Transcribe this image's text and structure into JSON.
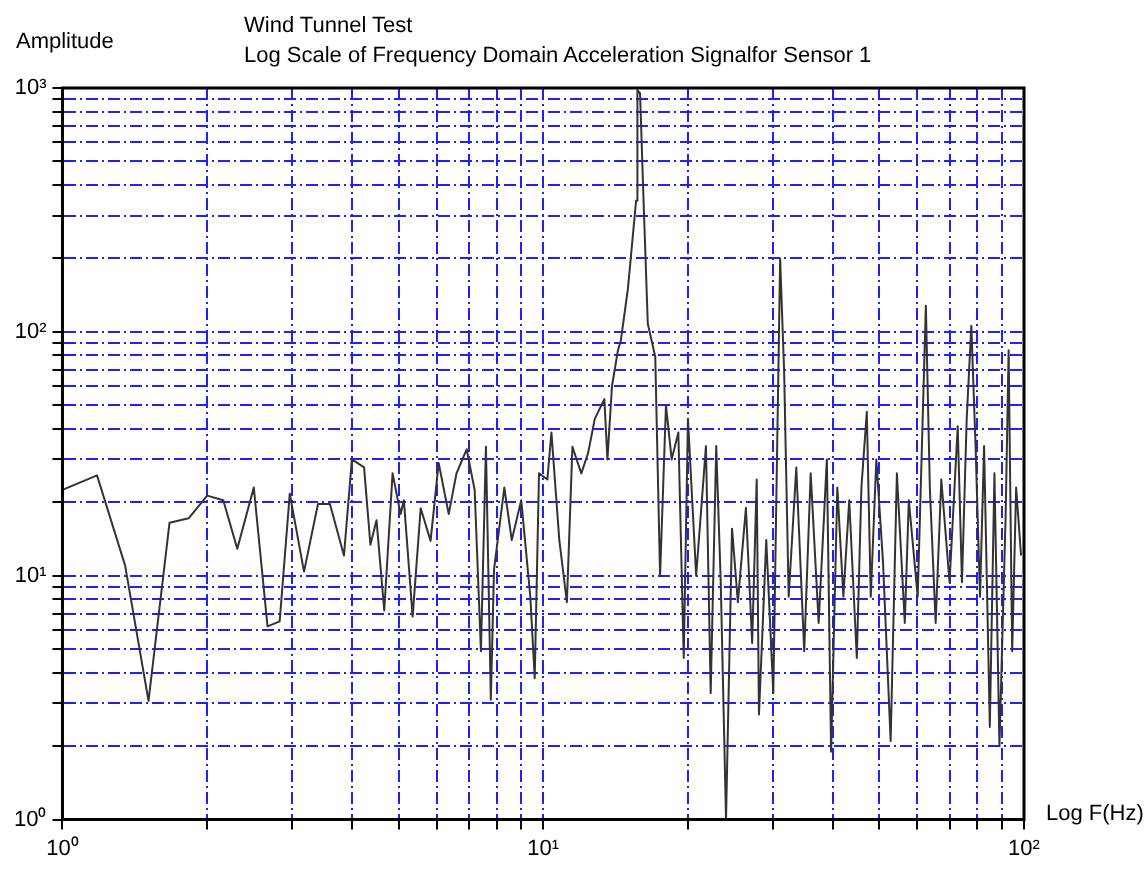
{
  "chart_data": {
    "type": "line",
    "title": "Wind Tunnel Test",
    "subtitle": "Log Scale of Frequency Domain Acceleration Signalfor Sensor 1",
    "xlabel": "Log F(Hz)",
    "ylabel": "Amplitude",
    "log": "xy",
    "grid": true,
    "legend": false,
    "marker": "none",
    "line_style": "solid",
    "xlim": [
      1,
      100
    ],
    "ylim": [
      1,
      1000
    ],
    "xticks": [
      {
        "value": 1,
        "label": "10⁰"
      },
      {
        "value": 2,
        "label": null
      },
      {
        "value": 3,
        "label": null
      },
      {
        "value": 4,
        "label": null
      },
      {
        "value": 5,
        "label": null
      },
      {
        "value": 6,
        "label": null
      },
      {
        "value": 7,
        "label": null
      },
      {
        "value": 8,
        "label": null
      },
      {
        "value": 9,
        "label": null
      },
      {
        "value": 10,
        "label": "10¹"
      },
      {
        "value": 20,
        "label": null
      },
      {
        "value": 30,
        "label": null
      },
      {
        "value": 40,
        "label": null
      },
      {
        "value": 50,
        "label": null
      },
      {
        "value": 60,
        "label": null
      },
      {
        "value": 70,
        "label": null
      },
      {
        "value": 80,
        "label": null
      },
      {
        "value": 90,
        "label": null
      },
      {
        "value": 100,
        "label": "10²"
      }
    ],
    "yticks": [
      {
        "value": 1,
        "label": "10⁰"
      },
      {
        "value": 2,
        "label": null
      },
      {
        "value": 3,
        "label": null
      },
      {
        "value": 4,
        "label": null
      },
      {
        "value": 5,
        "label": null
      },
      {
        "value": 6,
        "label": null
      },
      {
        "value": 7,
        "label": null
      },
      {
        "value": 8,
        "label": null
      },
      {
        "value": 9,
        "label": null
      },
      {
        "value": 10,
        "label": "10¹"
      },
      {
        "value": 20,
        "label": null
      },
      {
        "value": 30,
        "label": null
      },
      {
        "value": 40,
        "label": null
      },
      {
        "value": 50,
        "label": null
      },
      {
        "value": 60,
        "label": null
      },
      {
        "value": 70,
        "label": null
      },
      {
        "value": 80,
        "label": null
      },
      {
        "value": 90,
        "label": null
      },
      {
        "value": 100,
        "label": "10²"
      },
      {
        "value": 200,
        "label": null
      },
      {
        "value": 300,
        "label": null
      },
      {
        "value": 400,
        "label": null
      },
      {
        "value": 500,
        "label": null
      },
      {
        "value": 600,
        "label": null
      },
      {
        "value": 700,
        "label": null
      },
      {
        "value": 800,
        "label": null
      },
      {
        "value": 900,
        "label": null
      },
      {
        "value": 1000,
        "label": "10³"
      }
    ],
    "series": [
      {
        "color": "#333333",
        "x": [
          1.0,
          1.18,
          1.35,
          1.51,
          1.67,
          1.83,
          2.0,
          2.16,
          2.31,
          2.5,
          2.67,
          2.83,
          2.97,
          3.18,
          3.4,
          3.6,
          3.85,
          4.0,
          4.24,
          4.37,
          4.5,
          4.67,
          4.86,
          5.05,
          5.13,
          5.35,
          5.56,
          5.83,
          6.06,
          6.36,
          6.6,
          6.93,
          7.2,
          7.42,
          7.6,
          7.78,
          7.9,
          8.3,
          8.6,
          9.0,
          9.4,
          9.6,
          9.8,
          10.2,
          10.4,
          10.8,
          11.2,
          11.5,
          12.0,
          12.4,
          12.8,
          13.4,
          13.6,
          13.9,
          14.3,
          14.5,
          15.0,
          15.6,
          15.7,
          15.9,
          16.2,
          16.5,
          17.1,
          17.5,
          18.0,
          18.5,
          19.1,
          19.6,
          20.0,
          20.8,
          21.8,
          22.3,
          22.9,
          23.4,
          24.0,
          24.7,
          25.4,
          26.4,
          27.2,
          27.8,
          28.1,
          29.1,
          30.1,
          30.6,
          31.1,
          31.7,
          32.4,
          33.6,
          34.9,
          36.0,
          37.4,
          38.9,
          39.7,
          40.9,
          42.1,
          43.3,
          44.9,
          45.9,
          47.1,
          48.0,
          49.3,
          50.9,
          52.8,
          54.4,
          56.5,
          57.6,
          60.1,
          62.5,
          63.7,
          65.5,
          67.3,
          70,
          72.8,
          74.3,
          76.0,
          77.7,
          79.3,
          81.0,
          82.6,
          84.9,
          86.8,
          88.9,
          91.6,
          92.9,
          94.5,
          96.3,
          98.6
        ],
        "values": [
          22.5,
          25.8,
          11,
          3.07,
          16.5,
          17.2,
          21.3,
          20.4,
          12.9,
          23,
          6.2,
          6.5,
          21.7,
          10.4,
          19.7,
          19.7,
          12.1,
          30,
          27.8,
          13.4,
          16.9,
          7.2,
          26.3,
          17.9,
          20.4,
          6.8,
          18.9,
          13.9,
          29,
          17.9,
          26.3,
          33,
          22.5,
          4.9,
          33.8,
          3.1,
          10.6,
          23,
          14,
          20.4,
          8.2,
          3.8,
          26.3,
          24.8,
          38.7,
          14,
          7.8,
          33.8,
          26.3,
          31.9,
          44,
          53,
          30,
          60,
          84,
          92,
          150,
          345,
          980,
          950,
          307,
          108,
          79,
          10,
          50,
          30,
          38.7,
          4.6,
          44,
          10,
          34,
          3.3,
          34,
          9.4,
          1,
          15.6,
          7.8,
          19,
          5.3,
          24.8,
          2.7,
          14,
          3.3,
          26.3,
          200,
          69,
          8.2,
          27.8,
          4.9,
          26.3,
          6.4,
          30,
          1.9,
          23,
          8.2,
          20.4,
          4.6,
          23,
          47,
          8.2,
          30,
          11.4,
          2.1,
          26.3,
          6.4,
          20.4,
          8.2,
          128,
          23,
          6.4,
          24.8,
          9.4,
          41,
          9.4,
          44,
          106,
          34,
          8.2,
          34,
          2.4,
          26.3,
          2.0,
          17.9,
          84,
          4.9,
          23,
          12.1
        ]
      }
    ]
  }
}
